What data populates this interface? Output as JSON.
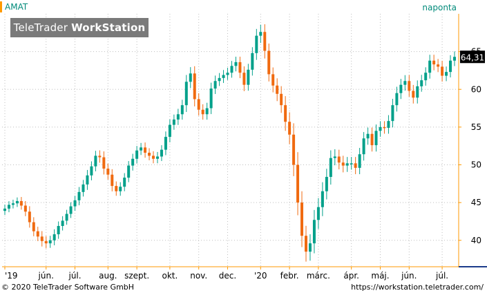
{
  "header": {
    "ticker": "AMAT",
    "interval": "naponta",
    "logo_regular": "TeleTrader",
    "logo_bold": "WorkStation"
  },
  "footer": {
    "copyright": "© 2020 TeleTrader Software GmbH",
    "url": "https://workstation.teletrader.com/"
  },
  "colors": {
    "up": "#00a08a",
    "down": "#f06a10",
    "grid": "#bdbdbd",
    "axis": "#ff9a00",
    "price_tag_bg": "#000000",
    "price_tag_fg": "#ffffff"
  },
  "chart_data": {
    "type": "candlestick",
    "title": "",
    "ylim": [
      36.5,
      70
    ],
    "y_ticks": [
      40,
      45,
      50,
      55,
      60,
      65
    ],
    "last_price_label": "64,31",
    "x_tick_labels": [
      "'19",
      "jún.",
      "júl.",
      "aug.",
      "szept.",
      "okt.",
      "nov.",
      "dec.",
      "'20",
      "febr.",
      "márc.",
      "ápr.",
      "máj.",
      "jún.",
      "júl."
    ],
    "close": [
      44.2,
      44.7,
      44.9,
      45.2,
      44.6,
      43.8,
      42.4,
      41.2,
      40.5,
      39.9,
      39.6,
      40.0,
      40.8,
      41.9,
      42.6,
      43.5,
      44.5,
      45.3,
      46.4,
      47.4,
      48.6,
      49.8,
      51.2,
      51.0,
      49.5,
      48.7,
      47.2,
      46.5,
      47.1,
      48.3,
      49.9,
      50.8,
      51.9,
      52.3,
      51.6,
      51.2,
      50.8,
      51.1,
      52.0,
      53.7,
      55.3,
      56.0,
      56.7,
      57.9,
      61.0,
      62.1,
      58.7,
      57.3,
      56.7,
      57.5,
      60.1,
      61.1,
      61.5,
      61.9,
      62.2,
      63.1,
      63.6,
      62.2,
      60.6,
      62.6,
      64.8,
      67.1,
      67.6,
      65.1,
      62.0,
      60.5,
      59.4,
      57.9,
      55.7,
      54.0,
      50.0,
      45.0,
      40.6,
      38.5,
      39.6,
      42.7,
      44.4,
      46.5,
      48.4,
      50.9,
      51.1,
      50.3,
      49.9,
      50.2,
      50.2,
      49.6,
      51.4,
      53.5,
      54.1,
      52.6,
      54.5,
      55.0,
      54.9,
      55.8,
      57.9,
      59.5,
      60.6,
      61.1,
      59.8,
      58.9,
      60.4,
      61.2,
      62.2,
      63.8,
      63.3,
      63.0,
      61.8,
      62.3,
      63.8,
      64.3
    ],
    "open": [
      43.9,
      44.2,
      44.7,
      44.9,
      45.2,
      44.6,
      43.8,
      42.4,
      41.2,
      40.5,
      39.9,
      39.6,
      40.0,
      40.8,
      41.9,
      42.6,
      43.5,
      44.5,
      45.3,
      46.4,
      47.4,
      48.6,
      49.8,
      51.2,
      51.0,
      49.5,
      48.7,
      47.2,
      46.5,
      47.1,
      48.3,
      49.9,
      50.8,
      51.9,
      52.3,
      51.6,
      51.2,
      50.8,
      51.1,
      52.0,
      53.7,
      55.3,
      56.0,
      56.7,
      57.9,
      61.0,
      62.1,
      58.7,
      57.3,
      56.7,
      57.5,
      60.1,
      61.1,
      61.5,
      61.9,
      62.2,
      63.1,
      63.6,
      62.2,
      60.6,
      62.6,
      64.8,
      67.1,
      67.6,
      65.1,
      62.0,
      60.5,
      59.4,
      57.9,
      55.7,
      54.0,
      50.0,
      45.0,
      40.6,
      38.5,
      39.6,
      42.7,
      44.4,
      46.5,
      48.4,
      50.9,
      51.1,
      50.3,
      49.9,
      50.2,
      50.2,
      49.6,
      51.4,
      53.5,
      54.1,
      52.6,
      54.5,
      55.0,
      54.9,
      55.8,
      57.9,
      59.5,
      60.6,
      61.1,
      59.8,
      58.9,
      60.4,
      61.2,
      62.2,
      63.8,
      63.3,
      63.0,
      61.8,
      62.3,
      63.8
    ],
    "spread": [
      0.9,
      0.8,
      0.8,
      0.8,
      0.9,
      1.0,
      1.2,
      1.1,
      1.0,
      1.2,
      1.1,
      1.0,
      1.1,
      1.0,
      1.0,
      0.9,
      0.9,
      1.0,
      1.1,
      1.0,
      1.2,
      1.1,
      1.1,
      1.2,
      1.3,
      1.1,
      1.2,
      1.0,
      1.0,
      1.0,
      1.0,
      1.1,
      1.0,
      1.0,
      1.1,
      1.0,
      1.0,
      1.0,
      1.0,
      1.2,
      1.2,
      1.1,
      1.2,
      1.2,
      1.5,
      1.4,
      1.6,
      1.3,
      1.2,
      1.2,
      1.3,
      1.2,
      1.1,
      1.1,
      1.1,
      1.1,
      1.2,
      1.2,
      1.4,
      1.3,
      1.3,
      1.5,
      1.6,
      1.7,
      1.6,
      1.5,
      1.6,
      1.7,
      2.0,
      2.1,
      2.5,
      2.8,
      2.5,
      2.2,
      2.0,
      2.2,
      2.0,
      2.0,
      1.8,
      1.7,
      1.6,
      1.5,
      1.5,
      1.4,
      1.4,
      1.4,
      1.4,
      1.4,
      1.4,
      1.4,
      1.4,
      1.3,
      1.3,
      1.3,
      1.4,
      1.4,
      1.3,
      1.3,
      1.3,
      1.3,
      1.3,
      1.2,
      1.2,
      1.3,
      1.3,
      1.2,
      1.3,
      1.2,
      1.2,
      1.2
    ]
  }
}
